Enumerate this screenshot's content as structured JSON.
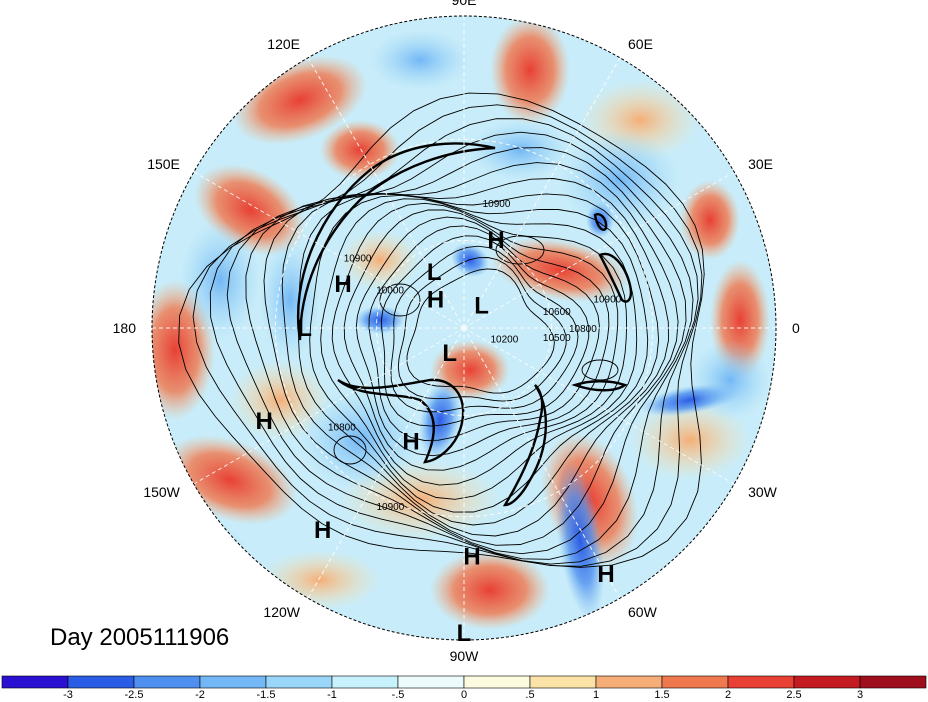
{
  "map": {
    "title": "Day 2005111906",
    "longitude_labels": [
      {
        "text": "90E",
        "lon": 90
      },
      {
        "text": "60E",
        "lon": 60
      },
      {
        "text": "30E",
        "lon": 30
      },
      {
        "text": "0",
        "lon": 0
      },
      {
        "text": "30W",
        "lon": -30
      },
      {
        "text": "60W",
        "lon": -60
      },
      {
        "text": "90W",
        "lon": -90
      },
      {
        "text": "120W",
        "lon": -120
      },
      {
        "text": "150W",
        "lon": -150
      },
      {
        "text": "180",
        "lon": 180
      },
      {
        "text": "150E",
        "lon": 150
      },
      {
        "text": "120E",
        "lon": 120
      }
    ],
    "pressure_centers": [
      {
        "text": "H",
        "lon": 160,
        "lat": 47
      },
      {
        "text": "L",
        "lon": 180,
        "lat": 38
      },
      {
        "text": "H",
        "lon": -155,
        "lat": 22
      },
      {
        "text": "H",
        "lon": -125,
        "lat": 16
      },
      {
        "text": "L",
        "lon": -90,
        "lat": 4
      },
      {
        "text": "H",
        "lon": -88,
        "lat": 20
      },
      {
        "text": "H",
        "lon": -60,
        "lat": 8
      },
      {
        "text": "H",
        "lon": -115,
        "lat": 48
      },
      {
        "text": "L",
        "lon": -120,
        "lat": 80
      },
      {
        "text": "H",
        "lon": 135,
        "lat": 76
      },
      {
        "text": "L",
        "lon": 118,
        "lat": 68
      },
      {
        "text": "L",
        "lon": 52,
        "lat": 80
      },
      {
        "text": "H",
        "lon": 70,
        "lat": 58
      }
    ],
    "contour_labels": [
      {
        "text": "10900",
        "lon": 75,
        "lat": 48
      },
      {
        "text": "10900",
        "lon": 10,
        "lat": 42
      },
      {
        "text": "10800",
        "lon": -2,
        "lat": 50
      },
      {
        "text": "10600",
        "lon": 8,
        "lat": 58
      },
      {
        "text": "10500",
        "lon": -8,
        "lat": 58
      },
      {
        "text": "10000",
        "lon": 155,
        "lat": 62
      },
      {
        "text": "10200",
        "lon": -20,
        "lat": 75
      },
      {
        "text": "10800",
        "lon": -140,
        "lat": 38
      },
      {
        "text": "10900",
        "lon": -112,
        "lat": 28
      },
      {
        "text": "10900",
        "lon": 148,
        "lat": 48
      }
    ]
  },
  "colorbar": {
    "tick_labels": [
      "-3",
      "-2.5",
      "-2",
      "-1.5",
      "-1",
      "-.5",
      "0",
      ".5",
      "1",
      "1.5",
      "2",
      "2.5",
      "3"
    ],
    "colors": [
      "#2a10d0",
      "#2a5ce6",
      "#4f8fef",
      "#73b7f5",
      "#99d6f8",
      "#c8f2fb",
      "#edfbfd",
      "#fdfbdf",
      "#fbe3a8",
      "#f5ae78",
      "#f0784e",
      "#e84034",
      "#c41a22",
      "#9e0e1c"
    ]
  }
}
